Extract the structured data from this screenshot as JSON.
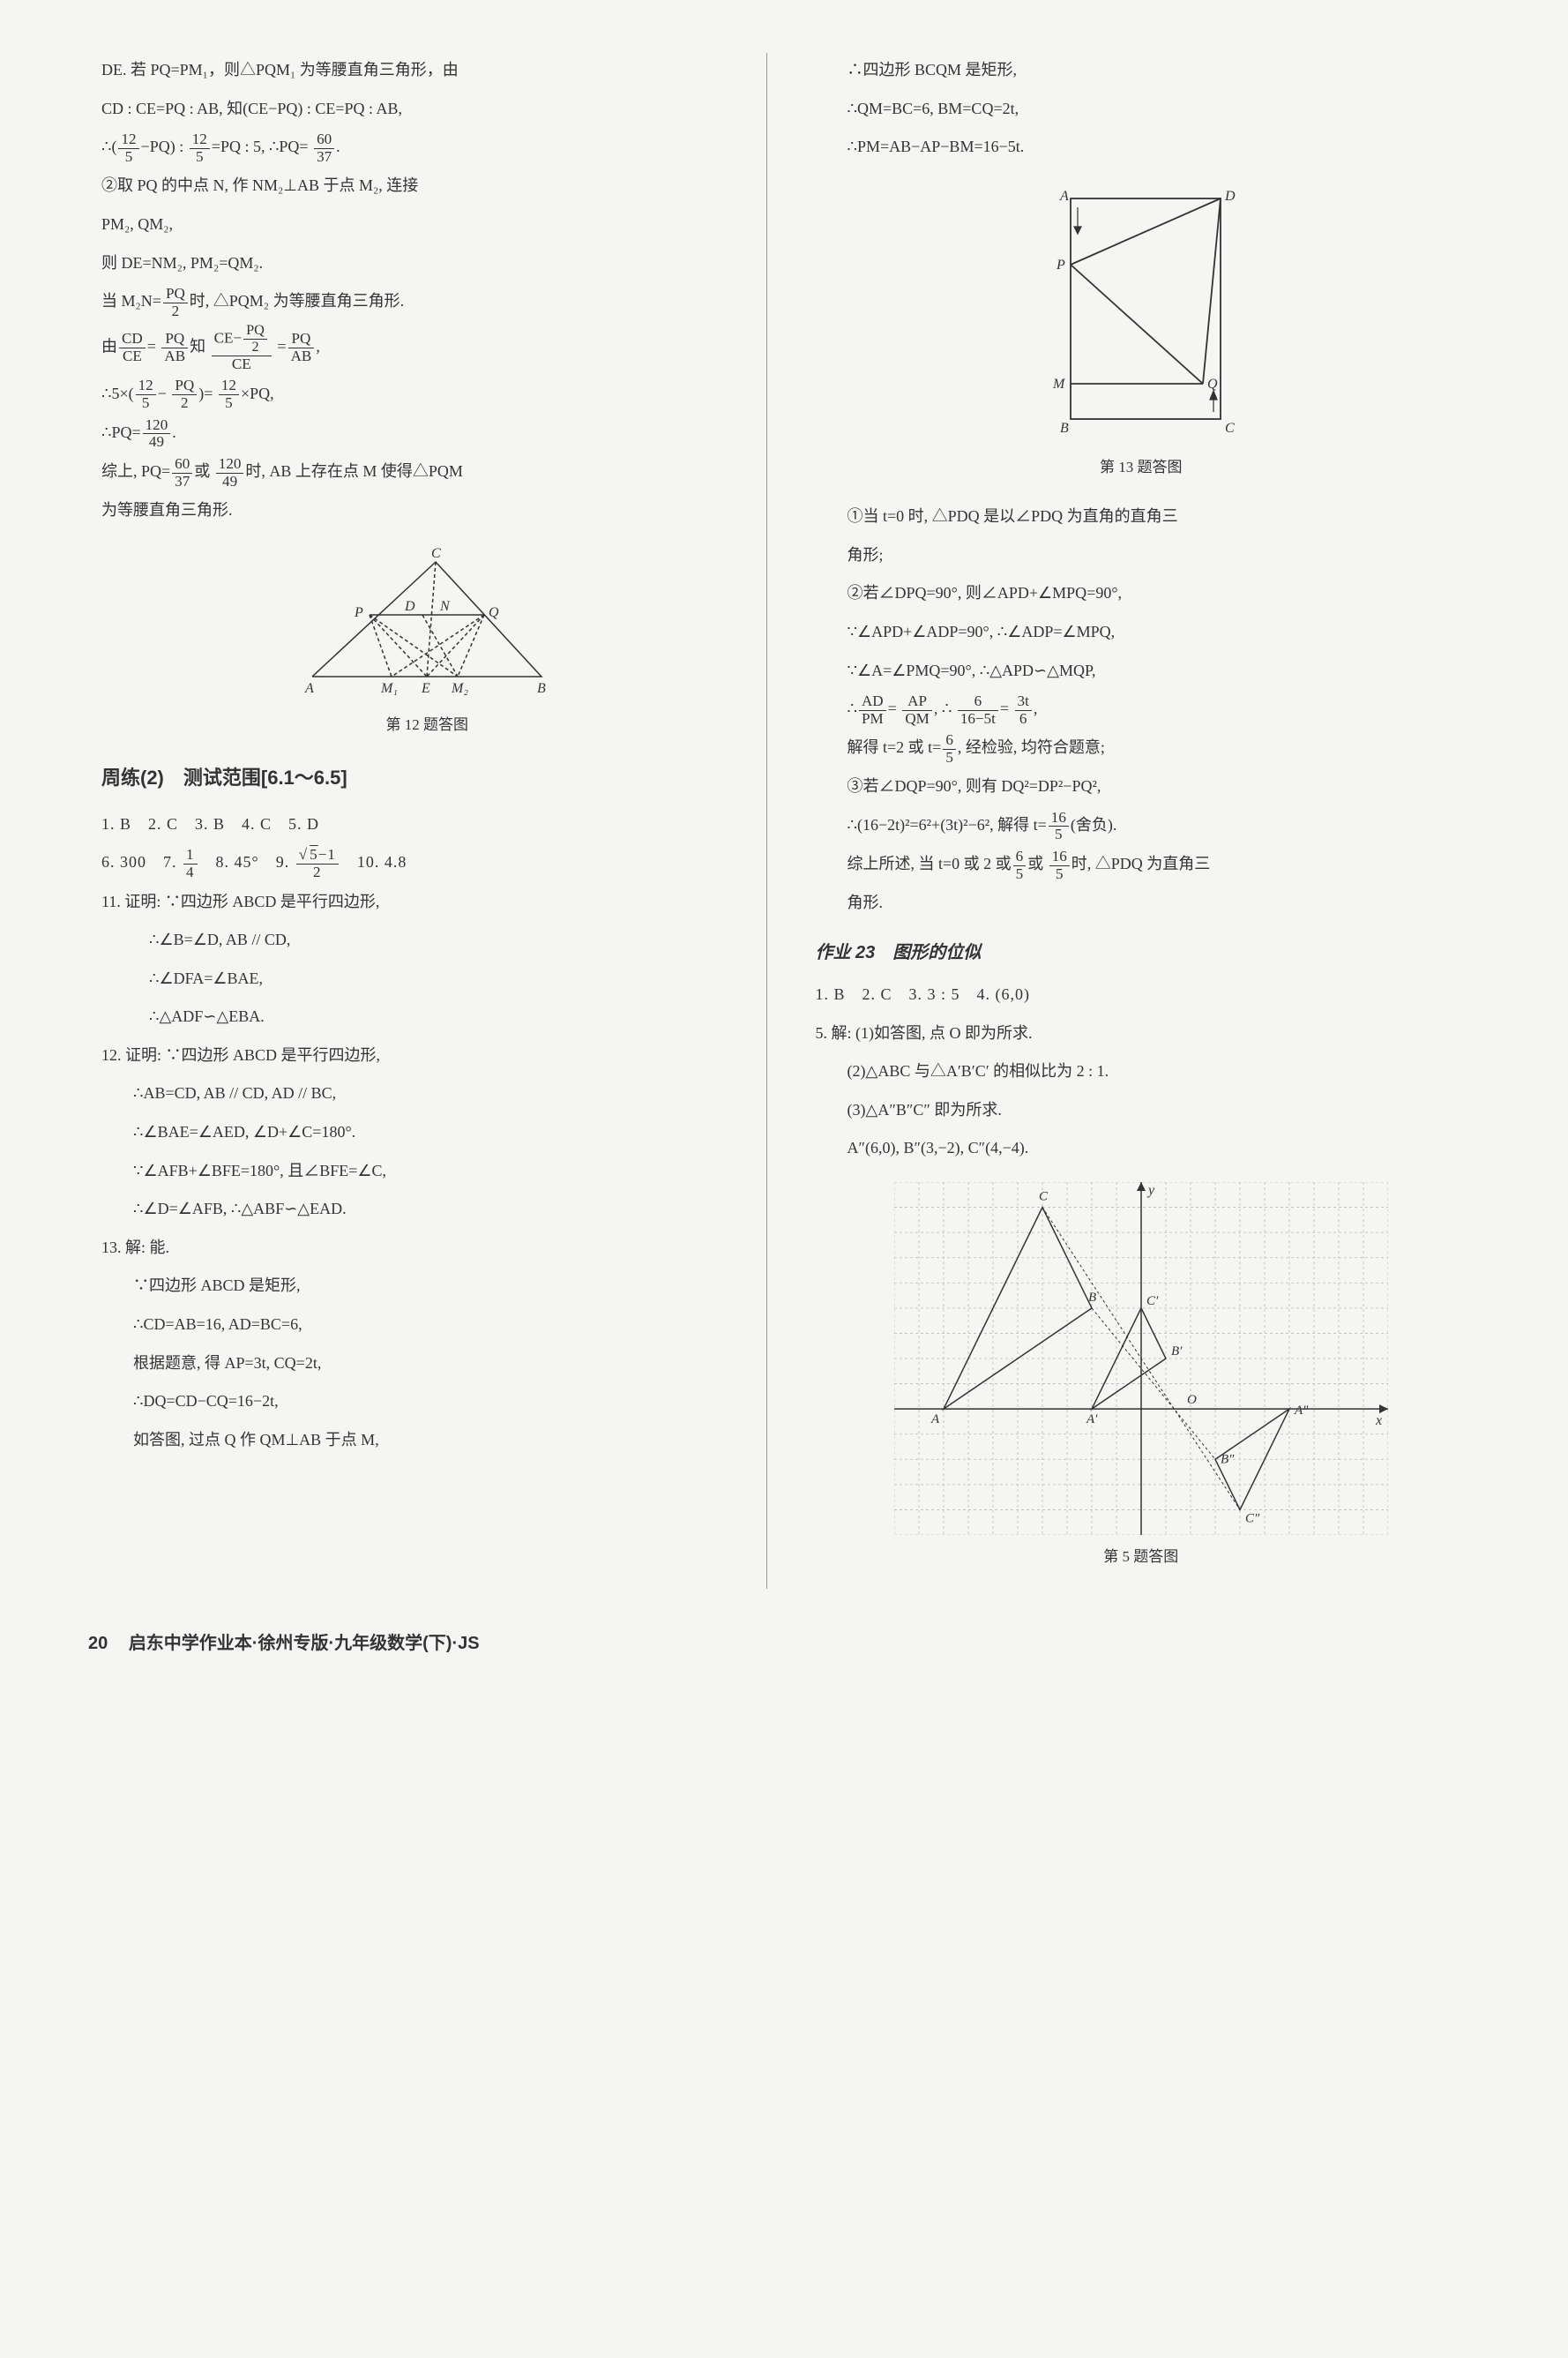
{
  "left": {
    "p1": "DE. 若 PQ=PM₁，则△PQM₁ 为等腰直角三角形，由",
    "p2": "CD : CE=PQ : AB, 知(CE−PQ) : CE=PQ : AB,",
    "p5": "②取 PQ 的中点 N, 作 NM₂⊥AB 于点 M₂, 连接",
    "p6": "PM₂, QM₂,",
    "p7": "则 DE=NM₂, PM₂=QM₂.",
    "p14": "为等腰直角三角形.",
    "fig12_caption": "第 12 题答图",
    "section2_title": "周练(2)　测试范围[6.1～6.5]",
    "ans_row1": "1. B　2. C　3. B　4. C　5. D",
    "q11_l1": "11. 证明: ∵四边形 ABCD 是平行四边形,",
    "q11_l2": "∴∠B=∠D, AB // CD,",
    "q11_l3": "∴∠DFA=∠BAE,",
    "q11_l4": "∴△ADF∽△EBA.",
    "q12_l1": "12. 证明: ∵四边形 ABCD 是平行四边形,",
    "q12_l2": "∴AB=CD, AB // CD, AD // BC,",
    "q12_l3": "∴∠BAE=∠AED, ∠D+∠C=180°.",
    "q12_l4": "∵∠AFB+∠BFE=180°, 且∠BFE=∠C,",
    "q12_l5": "∴∠D=∠AFB, ∴△ABF∽△EAD.",
    "q13_l1": "13. 解: 能.",
    "q13_l2": "∵四边形 ABCD 是矩形,",
    "q13_l3": "∴CD=AB=16, AD=BC=6,",
    "q13_l4": "根据题意, 得 AP=3t, CQ=2t,",
    "q13_l5": "∴DQ=CD−CQ=16−2t,",
    "q13_l6": "如答图, 过点 Q 作 QM⊥AB 于点 M,"
  },
  "right": {
    "r1": "∴四边形 BCQM 是矩形,",
    "r2": "∴QM=BC=6, BM=CQ=2t,",
    "r3": "∴PM=AB−AP−BM=16−5t.",
    "fig13_caption": "第 13 题答图",
    "r4": "①当 t=0 时, △PDQ 是以∠PDQ 为直角的直角三",
    "r5": "角形;",
    "r6": "②若∠DPQ=90°, 则∠APD+∠MPQ=90°,",
    "r7": "∵∠APD+∠ADP=90°, ∴∠ADP=∠MPQ,",
    "r8": "∵∠A=∠PMQ=90°, ∴△APD∽△MQP,",
    "r11": "③若∠DQP=90°, 则有 DQ²=DP²−PQ²,",
    "r14": "角形.",
    "hw23_title": "作业 23　图形的位似",
    "hw23_ans": "1. B　2. C　3. 3 : 5　4. (6,0)",
    "q5_l1": "5. 解: (1)如答图, 点 O 即为所求.",
    "q5_l2": "(2)△ABC 与△A′B′C′ 的相似比为 2 : 1.",
    "q5_l3": "(3)△A″B″C″ 即为所求.",
    "q5_l4": "A″(6,0), B″(3,−2), C″(4,−4).",
    "fig5_caption": "第 5 题答图"
  },
  "footer": {
    "pagenum": "20",
    "text": "启东中学作业本·徐州专版·九年级数学(下)·JS"
  },
  "figures": {
    "fig12": {
      "labels": {
        "A": "A",
        "B": "B",
        "C": "C",
        "P": "P",
        "Q": "Q",
        "D": "D",
        "N": "N",
        "E": "E",
        "M1": "M₁",
        "M2": "M₂"
      },
      "stroke": "#333",
      "dash": "4,3"
    },
    "fig13": {
      "labels": {
        "A": "A",
        "B": "B",
        "C": "C",
        "D": "D",
        "P": "P",
        "M": "M",
        "Q": "Q"
      },
      "stroke": "#333"
    },
    "fig5": {
      "grid_color": "#bbb",
      "axis_color": "#333",
      "stroke": "#333",
      "dash": "3,3",
      "xlabel": "x",
      "ylabel": "y",
      "labels": {
        "A": "A",
        "B": "B",
        "C": "C",
        "Ap": "A′",
        "Bp": "B′",
        "Cp": "C′",
        "App": "A″",
        "Bpp": "B″",
        "Cpp": "C″",
        "O": "O"
      },
      "xmin": -10,
      "xmax": 10,
      "ymin": -5,
      "ymax": 9,
      "A": [
        -8,
        0
      ],
      "B": [
        -2,
        4
      ],
      "C": [
        -4,
        8
      ],
      "Ap": [
        -2,
        0
      ],
      "Bp": [
        1,
        2
      ],
      "Cp": [
        0,
        4
      ],
      "O": [
        2,
        0
      ],
      "App": [
        6,
        0
      ],
      "Bpp": [
        3,
        -2
      ],
      "Cpp": [
        4,
        -4
      ]
    }
  }
}
